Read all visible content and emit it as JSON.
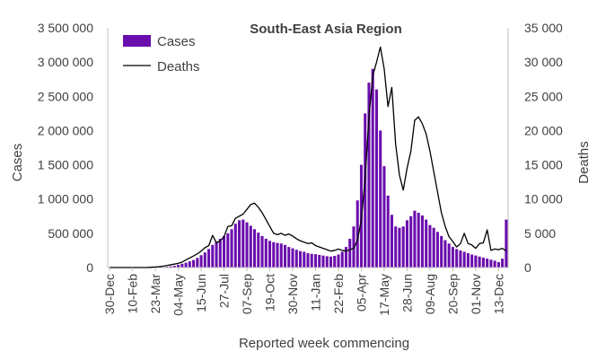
{
  "chart_data": {
    "type": "bar",
    "title": "South-East Asia Region",
    "xlabel": "Reported week commencing",
    "ylabel": "Cases",
    "y2label": "Deaths",
    "ylim": [
      0,
      3500000
    ],
    "y2lim": [
      0,
      35000
    ],
    "y_ticks": [
      "0",
      "500 000",
      "1 000 000",
      "1 500 000",
      "2 000 000",
      "2 500 000",
      "3 000 000",
      "3 500 000"
    ],
    "y2_ticks": [
      "0",
      "5 000",
      "10 000",
      "15 000",
      "20 000",
      "25 000",
      "30 000",
      "35 000"
    ],
    "x_tick_labels": [
      "30-Dec",
      "10-Feb",
      "23-Mar",
      "04-May",
      "15-Jun",
      "27-Jul",
      "07-Sep",
      "19-Oct",
      "30-Nov",
      "11-Jan",
      "22-Feb",
      "05-Apr",
      "17-May",
      "28-Jun",
      "09-Aug",
      "20-Sep",
      "01-Nov",
      "13-Dec"
    ],
    "legend_position": "top-left",
    "series": [
      {
        "name": "Cases",
        "kind": "bar",
        "color": "#6a0dad",
        "axis": "left",
        "values": [
          0,
          0,
          0,
          0,
          0,
          0,
          0,
          0,
          0,
          0,
          0,
          1000,
          3000,
          5000,
          8000,
          12000,
          18000,
          25000,
          40000,
          55000,
          70000,
          90000,
          110000,
          140000,
          180000,
          220000,
          270000,
          330000,
          380000,
          420000,
          460000,
          500000,
          560000,
          640000,
          690000,
          700000,
          660000,
          610000,
          560000,
          510000,
          460000,
          420000,
          390000,
          370000,
          360000,
          350000,
          330000,
          300000,
          280000,
          260000,
          240000,
          230000,
          210000,
          200000,
          195000,
          185000,
          175000,
          165000,
          160000,
          170000,
          190000,
          230000,
          300000,
          420000,
          600000,
          980000,
          1500000,
          2250000,
          2700000,
          2900000,
          2600000,
          2000000,
          1480000,
          1050000,
          770000,
          600000,
          580000,
          600000,
          690000,
          750000,
          830000,
          800000,
          760000,
          700000,
          620000,
          580000,
          520000,
          460000,
          400000,
          350000,
          300000,
          270000,
          250000,
          230000,
          210000,
          190000,
          175000,
          160000,
          145000,
          130000,
          115000,
          100000,
          80000,
          130000,
          700000
        ]
      },
      {
        "name": "Deaths",
        "kind": "line",
        "color": "#000000",
        "axis": "right",
        "values": [
          0,
          0,
          0,
          0,
          0,
          0,
          0,
          0,
          0,
          0,
          10,
          40,
          80,
          120,
          200,
          300,
          400,
          500,
          600,
          800,
          1100,
          1400,
          1700,
          2000,
          2400,
          2900,
          3200,
          4700,
          3600,
          3900,
          4500,
          6000,
          6100,
          7200,
          7500,
          7800,
          8500,
          9200,
          9400,
          8800,
          8000,
          7000,
          6000,
          5000,
          4800,
          5000,
          4700,
          4900,
          4600,
          4200,
          3900,
          3700,
          3500,
          3600,
          3200,
          3000,
          2800,
          2600,
          2400,
          2500,
          2700,
          2500,
          2400,
          2600,
          2800,
          4000,
          7000,
          13000,
          22000,
          28000,
          30000,
          32200,
          29000,
          23500,
          26300,
          18000,
          13500,
          11300,
          14500,
          17000,
          21500,
          22000,
          21000,
          19500,
          17000,
          14000,
          11000,
          8000,
          6000,
          4500,
          3800,
          3000,
          3500,
          5000,
          3500,
          3300,
          2800,
          3500,
          3600,
          5500,
          2500,
          2700,
          2600,
          2800,
          2400
        ]
      }
    ]
  }
}
